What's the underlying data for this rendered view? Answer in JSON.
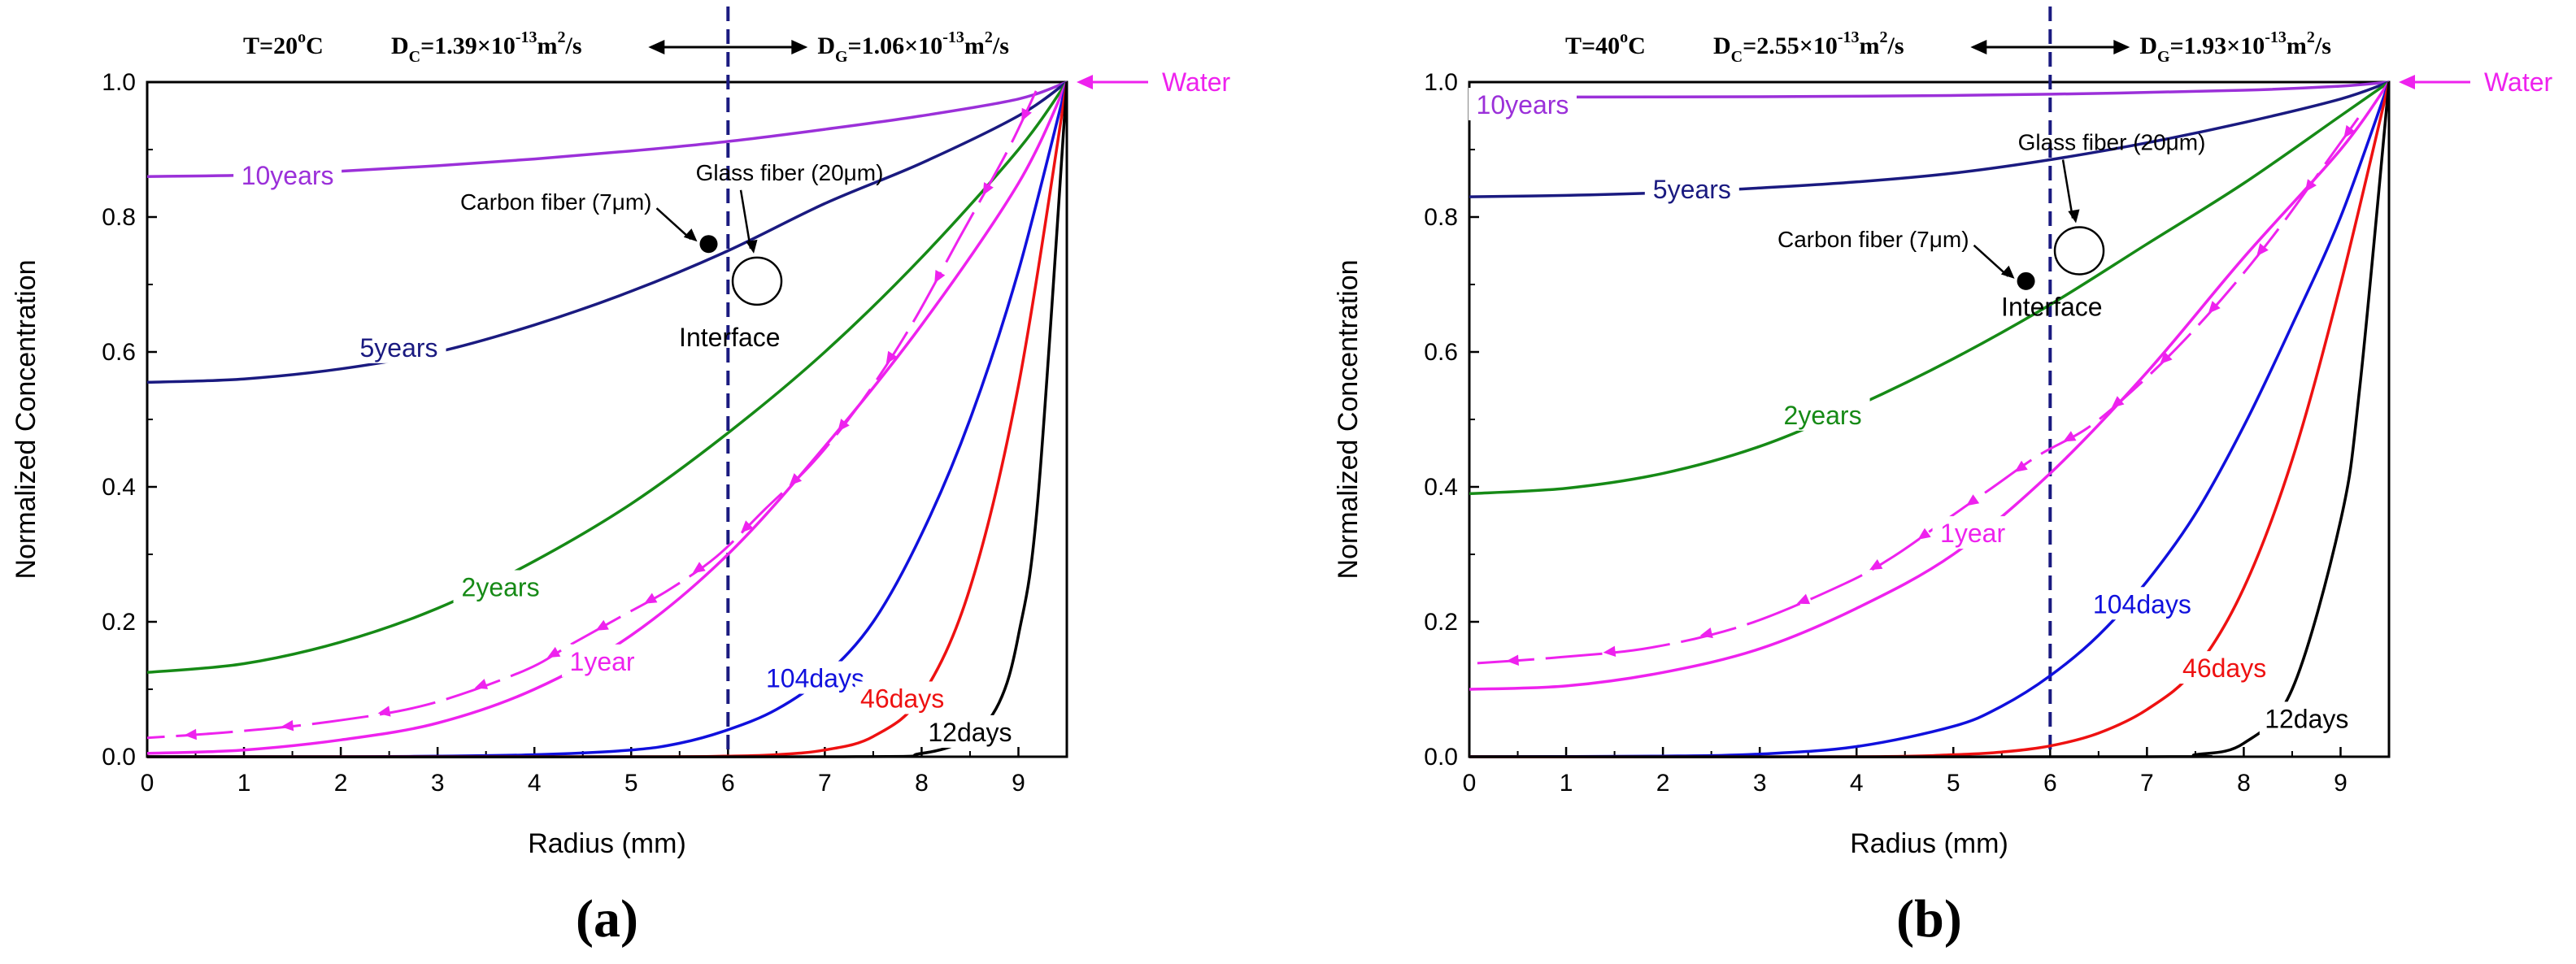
{
  "figure": {
    "panels": [
      "a",
      "b"
    ]
  },
  "chart_data": [
    {
      "type": "line",
      "panel_label": "(a)",
      "xlabel": "Radius (mm)",
      "ylabel": "Normalized Concentration",
      "xlim": [
        0,
        9.5
      ],
      "ylim": [
        0,
        1.0
      ],
      "xticks": [
        0,
        1,
        2,
        3,
        4,
        5,
        6,
        7,
        8,
        9
      ],
      "xtick_labels": [
        "0",
        "1",
        "2",
        "3",
        "4",
        "5",
        "6",
        "7",
        "8",
        "9"
      ],
      "yticks": [
        0,
        0.2,
        0.4,
        0.6,
        0.8,
        1.0
      ],
      "ytick_labels": [
        "0.0",
        "0.2",
        "0.4",
        "0.6",
        "0.8",
        "1.0"
      ],
      "header": {
        "temp": "T=20°C",
        "dc": "DC=1.39×10-13m2/s",
        "dg": "DG=1.06×10-13m2/s"
      },
      "interface_radius": 6,
      "annotations": {
        "water": "Water",
        "interface": "Interface",
        "carbon": "Carbon fiber (7μm)",
        "glass": "Glass fiber (20μm)",
        "carbon_point": [
          5.8,
          0.76
        ],
        "glass_ellipse": [
          6.3,
          0.705
        ]
      },
      "series": [
        {
          "name": "10years",
          "color": "#9b30d9",
          "x": [
            0,
            1,
            2,
            3,
            4,
            5,
            6,
            7,
            8,
            9,
            9.5
          ],
          "y": [
            0.86,
            0.862,
            0.868,
            0.876,
            0.886,
            0.898,
            0.912,
            0.93,
            0.95,
            0.975,
            1.0
          ]
        },
        {
          "name": "5years",
          "color": "#1a1a80",
          "x": [
            0,
            1,
            2,
            3,
            4,
            5,
            6,
            7,
            8,
            9,
            9.5
          ],
          "y": [
            0.555,
            0.56,
            0.575,
            0.6,
            0.64,
            0.69,
            0.75,
            0.82,
            0.88,
            0.95,
            1.0
          ]
        },
        {
          "name": "2years",
          "color": "#168a16",
          "x": [
            0,
            1,
            2,
            3,
            4,
            5,
            6,
            7,
            8,
            9,
            9.5
          ],
          "y": [
            0.125,
            0.138,
            0.17,
            0.22,
            0.29,
            0.375,
            0.48,
            0.6,
            0.74,
            0.9,
            1.0
          ]
        },
        {
          "name": "1year",
          "color": "#ee22ee",
          "x": [
            0,
            1,
            2,
            3,
            4,
            5,
            6,
            7,
            8,
            9,
            9.5
          ],
          "y": [
            0.005,
            0.01,
            0.025,
            0.05,
            0.1,
            0.18,
            0.3,
            0.46,
            0.64,
            0.85,
            1.0
          ]
        },
        {
          "name": "104days",
          "color": "#1010dd",
          "x": [
            0,
            2,
            3,
            4,
            5,
            5.5,
            6,
            6.5,
            7,
            7.5,
            8,
            8.5,
            9,
            9.5
          ],
          "y": [
            0,
            0,
            0.001,
            0.003,
            0.01,
            0.02,
            0.04,
            0.07,
            0.12,
            0.2,
            0.33,
            0.5,
            0.72,
            1.0
          ]
        },
        {
          "name": "46days",
          "color": "#ee1111",
          "x": [
            0,
            5,
            6,
            6.5,
            7,
            7.5,
            8,
            8.5,
            9,
            9.5
          ],
          "y": [
            0,
            0,
            0.001,
            0.003,
            0.01,
            0.03,
            0.09,
            0.25,
            0.55,
            1.0
          ]
        },
        {
          "name": "12days",
          "color": "#000000",
          "x": [
            0,
            7,
            8,
            8.5,
            8.8,
            9,
            9.2,
            9.5
          ],
          "y": [
            0,
            0,
            0.005,
            0.03,
            0.08,
            0.18,
            0.38,
            1.0
          ]
        }
      ],
      "series_labels": [
        {
          "text": "10years",
          "color": "#9b30d9",
          "x": 1.45,
          "y": 0.86
        },
        {
          "text": "5years",
          "color": "#1a1a80",
          "x": 2.6,
          "y": 0.605
        },
        {
          "text": "2years",
          "color": "#168a16",
          "x": 3.65,
          "y": 0.25
        },
        {
          "text": "1year",
          "color": "#ee22ee",
          "x": 4.7,
          "y": 0.14
        },
        {
          "text": "104days",
          "color": "#1010dd",
          "x": 6.9,
          "y": 0.115
        },
        {
          "text": "46days",
          "color": "#ee1111",
          "x": 7.8,
          "y": 0.085
        },
        {
          "text": "12days",
          "color": "#000000",
          "x": 8.5,
          "y": 0.035
        }
      ],
      "arrow_path": {
        "color": "#ee22ee",
        "x": [
          9.3,
          9,
          8.5,
          8,
          7.5,
          7,
          6.5,
          6,
          5.5,
          5,
          4.5,
          4,
          3,
          2,
          1,
          0
        ],
        "y": [
          0.97,
          0.88,
          0.75,
          0.62,
          0.51,
          0.42,
          0.35,
          0.28,
          0.23,
          0.19,
          0.15,
          0.11,
          0.06,
          0.035,
          0.02,
          0.01
        ]
      }
    },
    {
      "type": "line",
      "panel_label": "(b)",
      "xlabel": "Radius (mm)",
      "ylabel": "Normalized Concentration",
      "xlim": [
        0,
        9.5
      ],
      "ylim": [
        0,
        1.0
      ],
      "xticks": [
        0,
        1,
        2,
        3,
        4,
        5,
        6,
        7,
        8,
        9
      ],
      "xtick_labels": [
        "0",
        "1",
        "2",
        "3",
        "4",
        "5",
        "6",
        "7",
        "8",
        "9"
      ],
      "yticks": [
        0,
        0.2,
        0.4,
        0.6,
        0.8,
        1.0
      ],
      "ytick_labels": [
        "0.0",
        "0.2",
        "0.4",
        "0.6",
        "0.8",
        "1.0"
      ],
      "header": {
        "temp": "T=40°C",
        "dc": "DC=2.55×10-13m2/s",
        "dg": "DG=1.93×10-13m2/s"
      },
      "interface_radius": 6,
      "annotations": {
        "water": "Water",
        "interface": "Interface",
        "carbon": "Carbon fiber (7μm)",
        "glass": "Glass fiber (20μm)",
        "carbon_point": [
          5.75,
          0.705
        ],
        "glass_ellipse": [
          6.3,
          0.75
        ]
      },
      "series": [
        {
          "name": "10years",
          "color": "#9b30d9",
          "x": [
            0,
            2,
            4,
            6,
            8,
            9,
            9.5
          ],
          "y": [
            0.978,
            0.978,
            0.979,
            0.982,
            0.988,
            0.994,
            1.0
          ]
        },
        {
          "name": "5years",
          "color": "#1a1a80",
          "x": [
            0,
            1,
            2,
            3,
            4,
            5,
            6,
            7,
            8,
            9,
            9.5
          ],
          "y": [
            0.83,
            0.832,
            0.836,
            0.843,
            0.852,
            0.865,
            0.885,
            0.91,
            0.94,
            0.975,
            1.0
          ]
        },
        {
          "name": "2years",
          "color": "#168a16",
          "x": [
            0,
            1,
            2,
            3,
            4,
            5,
            6,
            7,
            8,
            9,
            9.5
          ],
          "y": [
            0.39,
            0.398,
            0.42,
            0.46,
            0.52,
            0.59,
            0.67,
            0.76,
            0.85,
            0.95,
            1.0
          ]
        },
        {
          "name": "1year",
          "color": "#ee22ee",
          "x": [
            0,
            1,
            2,
            3,
            4,
            5,
            6,
            7,
            8,
            9,
            9.5
          ],
          "y": [
            0.1,
            0.105,
            0.125,
            0.16,
            0.22,
            0.3,
            0.42,
            0.57,
            0.74,
            0.9,
            1.0
          ]
        },
        {
          "name": "104days",
          "color": "#1010dd",
          "x": [
            0,
            2,
            3,
            4,
            5,
            5.5,
            6,
            6.5,
            7,
            7.5,
            8,
            8.5,
            9,
            9.5
          ],
          "y": [
            0,
            0.001,
            0.004,
            0.015,
            0.045,
            0.075,
            0.12,
            0.18,
            0.26,
            0.36,
            0.49,
            0.64,
            0.8,
            1.0
          ]
        },
        {
          "name": "46days",
          "color": "#ee1111",
          "x": [
            0,
            4,
            5,
            5.5,
            6,
            6.5,
            7,
            7.5,
            8,
            8.5,
            9,
            9.5
          ],
          "y": [
            0,
            0,
            0.003,
            0.007,
            0.016,
            0.035,
            0.07,
            0.13,
            0.25,
            0.44,
            0.7,
            1.0
          ]
        },
        {
          "name": "12days",
          "color": "#000000",
          "x": [
            0,
            7,
            7.5,
            8,
            8.5,
            9,
            9.2,
            9.5
          ],
          "y": [
            0,
            0,
            0.003,
            0.02,
            0.1,
            0.35,
            0.55,
            1.0
          ]
        }
      ],
      "series_labels": [
        {
          "text": "10years",
          "color": "#9b30d9",
          "x": 0.55,
          "y": 0.965
        },
        {
          "text": "5years",
          "color": "#1a1a80",
          "x": 2.3,
          "y": 0.84
        },
        {
          "text": "2years",
          "color": "#168a16",
          "x": 3.65,
          "y": 0.505
        },
        {
          "text": "1year",
          "color": "#ee22ee",
          "x": 5.2,
          "y": 0.33
        },
        {
          "text": "104days",
          "color": "#1010dd",
          "x": 6.95,
          "y": 0.225
        },
        {
          "text": "46days",
          "color": "#ee1111",
          "x": 7.8,
          "y": 0.13
        },
        {
          "text": "12days",
          "color": "#000000",
          "x": 8.65,
          "y": 0.055
        }
      ],
      "arrow_path": {
        "color": "#ee22ee",
        "x": [
          9.3,
          9,
          8.5,
          8,
          7.5,
          7,
          6.5,
          6,
          5.5,
          5,
          4.5,
          4,
          3,
          2,
          1,
          0
        ],
        "y": [
          0.93,
          0.87,
          0.77,
          0.68,
          0.6,
          0.53,
          0.47,
          0.43,
          0.38,
          0.33,
          0.28,
          0.24,
          0.18,
          0.145,
          0.13,
          0.12
        ]
      }
    }
  ]
}
